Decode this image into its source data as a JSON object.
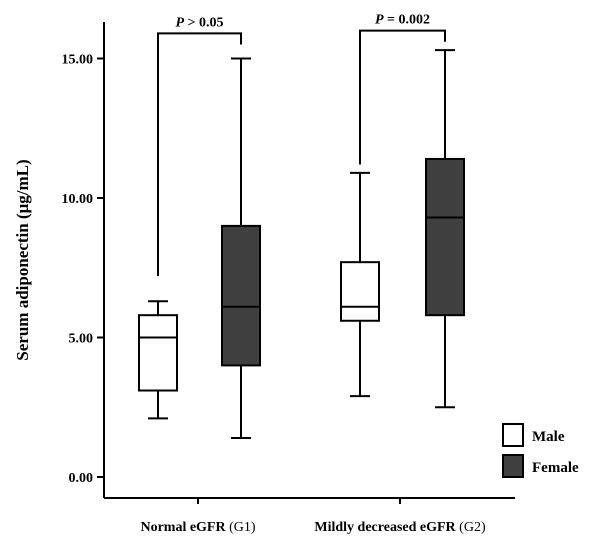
{
  "chart_data": {
    "type": "boxplot",
    "ylabel": "Serum adiponectin (μg/mL)",
    "ylim": [
      -0.3,
      16.3
    ],
    "yticks": [
      0,
      5,
      10,
      15
    ],
    "ytick_labels": [
      "0.00",
      "5.00",
      "10.00",
      "15.00"
    ],
    "categories": [
      {
        "label_main": "Normal eGFR",
        "label_group": " (G1)"
      },
      {
        "label_main": "Mildly decreased eGFR",
        "label_group": " (G2)"
      }
    ],
    "series": [
      {
        "name": "Male",
        "color": "#ffffff",
        "boxes": [
          {
            "min": 2.1,
            "q1": 3.1,
            "median": 5.0,
            "q3": 5.8,
            "max": 6.3
          },
          {
            "min": 2.9,
            "q1": 5.6,
            "median": 6.1,
            "q3": 7.7,
            "max": 10.9
          }
        ]
      },
      {
        "name": "Female",
        "color": "#404040",
        "boxes": [
          {
            "min": 1.4,
            "q1": 4.0,
            "median": 6.1,
            "q3": 9.0,
            "max": 15.0
          },
          {
            "min": 2.5,
            "q1": 5.8,
            "median": 9.3,
            "q3": 11.4,
            "max": 15.3
          }
        ]
      }
    ],
    "annotations": [
      {
        "category_index": 0,
        "p_symbol": "P",
        "p_rest": " > 0.05",
        "left_y": 7.2,
        "right_y": 15.5,
        "bracket_y": 15.9
      },
      {
        "category_index": 1,
        "p_symbol": "P",
        "p_rest": " = 0.002",
        "left_y": 11.2,
        "right_y": 15.6,
        "bracket_y": 16.0
      }
    ],
    "legend": {
      "position": "bottom-right"
    },
    "grid": false
  }
}
